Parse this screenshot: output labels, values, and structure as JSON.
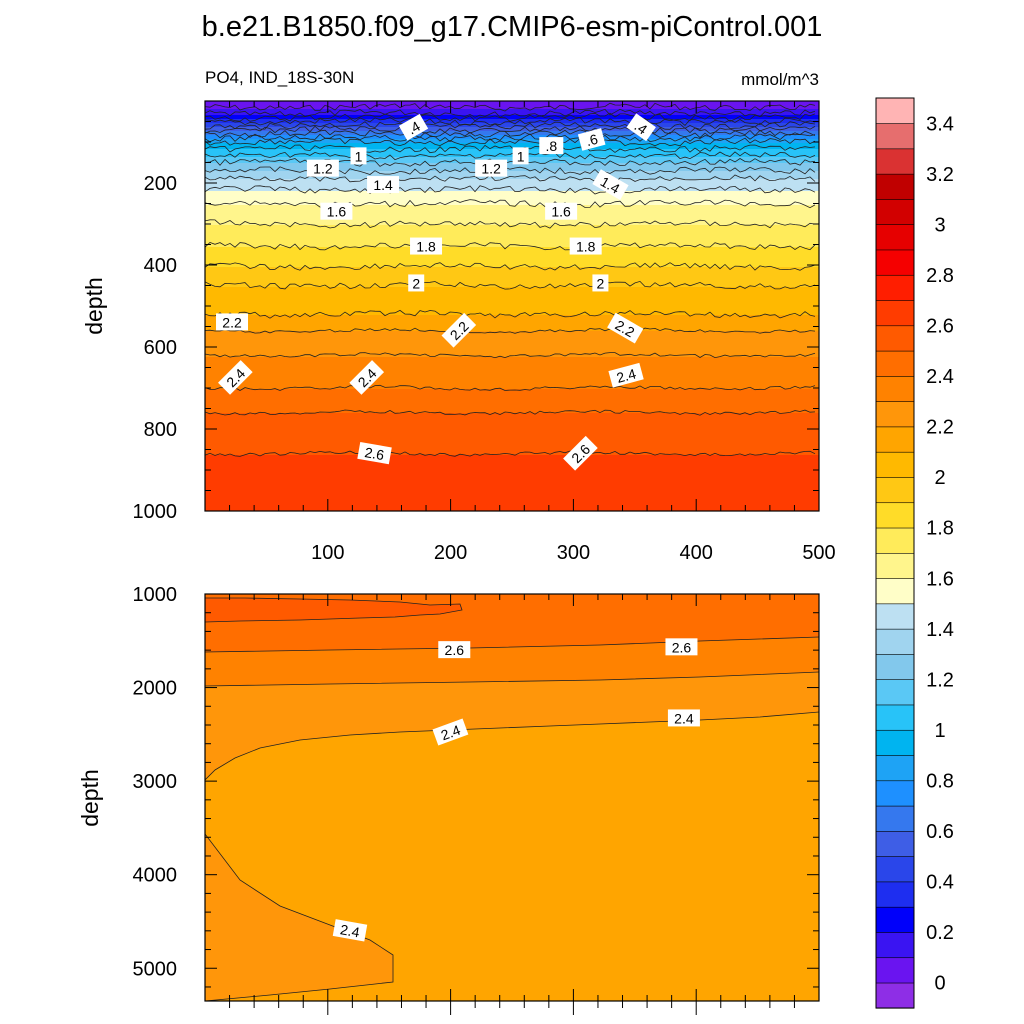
{
  "title": "b.e21.B1850.f09_g17.CMIP6-esm-piControl.001",
  "subtitle_left": "PO4, IND_18S-30N",
  "subtitle_right": "mmol/m^3",
  "colors": {
    "contour_line": "#222222",
    "label_bg": "#ffffff"
  },
  "chart_data": [
    {
      "type": "contour",
      "panel": "upper",
      "variable": "PO4",
      "region": "IND_18S-30N",
      "units": "mmol/m^3",
      "xlim": [
        0,
        500
      ],
      "ylim": [
        1000,
        0
      ],
      "ylabel": "depth",
      "xticks": [
        100,
        200,
        300,
        400,
        500
      ],
      "xtick_labels": [
        "100",
        "200",
        "300",
        "400",
        "500"
      ],
      "yticks": [
        200,
        400,
        600,
        800,
        1000
      ],
      "ytick_labels": [
        "200",
        "400",
        "600",
        "800",
        "1000"
      ],
      "depth_profile": [
        {
          "depth": 0,
          "value": 0.0
        },
        {
          "depth": 30,
          "value": 0.2
        },
        {
          "depth": 60,
          "value": 0.5
        },
        {
          "depth": 100,
          "value": 0.9
        },
        {
          "depth": 150,
          "value": 1.2
        },
        {
          "depth": 200,
          "value": 1.45
        },
        {
          "depth": 250,
          "value": 1.6
        },
        {
          "depth": 300,
          "value": 1.7
        },
        {
          "depth": 380,
          "value": 1.85
        },
        {
          "depth": 450,
          "value": 2.0
        },
        {
          "depth": 520,
          "value": 2.1
        },
        {
          "depth": 560,
          "value": 2.2
        },
        {
          "depth": 620,
          "value": 2.3
        },
        {
          "depth": 700,
          "value": 2.4
        },
        {
          "depth": 760,
          "value": 2.5
        },
        {
          "depth": 860,
          "value": 2.6
        },
        {
          "depth": 1000,
          "value": 2.65
        }
      ],
      "contour_labels": [
        {
          "text": ".4",
          "x": 170,
          "depth": 65,
          "rotation": -30
        },
        {
          "text": ".4",
          "x": 355,
          "depth": 65,
          "rotation": 35
        },
        {
          "text": ".6",
          "x": 315,
          "depth": 95,
          "rotation": -15
        },
        {
          "text": ".8",
          "x": 282,
          "depth": 110,
          "rotation": 0
        },
        {
          "text": "1",
          "x": 125,
          "depth": 135,
          "rotation": 0
        },
        {
          "text": "1",
          "x": 257,
          "depth": 135,
          "rotation": 0
        },
        {
          "text": "1.2",
          "x": 96,
          "depth": 165,
          "rotation": 0
        },
        {
          "text": "1.2",
          "x": 233,
          "depth": 165,
          "rotation": 0
        },
        {
          "text": "1.4",
          "x": 145,
          "depth": 205,
          "rotation": 0
        },
        {
          "text": "1.4",
          "x": 330,
          "depth": 205,
          "rotation": 30
        },
        {
          "text": "1.6",
          "x": 107,
          "depth": 270,
          "rotation": 0
        },
        {
          "text": "1.6",
          "x": 290,
          "depth": 270,
          "rotation": 0
        },
        {
          "text": "1.8",
          "x": 180,
          "depth": 355,
          "rotation": 0
        },
        {
          "text": "1.8",
          "x": 310,
          "depth": 355,
          "rotation": 0
        },
        {
          "text": "2",
          "x": 172,
          "depth": 445,
          "rotation": 0
        },
        {
          "text": "2",
          "x": 322,
          "depth": 445,
          "rotation": 0
        },
        {
          "text": "2.2",
          "x": 22,
          "depth": 540,
          "rotation": 0
        },
        {
          "text": "2.2",
          "x": 207,
          "depth": 560,
          "rotation": -45
        },
        {
          "text": "2.2",
          "x": 342,
          "depth": 555,
          "rotation": 30
        },
        {
          "text": "2.4",
          "x": 25,
          "depth": 675,
          "rotation": -45
        },
        {
          "text": "2.4",
          "x": 132,
          "depth": 675,
          "rotation": -45
        },
        {
          "text": "2.4",
          "x": 343,
          "depth": 670,
          "rotation": -15
        },
        {
          "text": "2.6",
          "x": 138,
          "depth": 860,
          "rotation": 10
        },
        {
          "text": "2.6",
          "x": 306,
          "depth": 860,
          "rotation": -45
        }
      ]
    },
    {
      "type": "contour",
      "panel": "lower",
      "variable": "PO4",
      "region": "IND_18S-30N",
      "units": "mmol/m^3",
      "xlim": [
        0,
        500
      ],
      "ylim": [
        5350,
        1000
      ],
      "ylabel": "depth",
      "yticks": [
        1000,
        2000,
        3000,
        4000,
        5000
      ],
      "ytick_labels": [
        "1000",
        "2000",
        "3000",
        "4000",
        "5000"
      ],
      "fill_regions": [
        {
          "name": "above-2.7",
          "value": 2.7
        },
        {
          "name": "2.6-2.7",
          "value": 2.65
        },
        {
          "name": "2.5-2.6",
          "value": 2.55
        },
        {
          "name": "2.4-2.5",
          "value": 2.45
        },
        {
          "name": "2.3-2.4",
          "value": 2.35
        },
        {
          "name": "bottom-2.4-2.5",
          "value": 2.45
        }
      ],
      "contour_labels": [
        {
          "text": "2.6",
          "x": 203,
          "depth": 1600,
          "rotation": 0
        },
        {
          "text": "2.6",
          "x": 388,
          "depth": 1570,
          "rotation": 0
        },
        {
          "text": "2.4",
          "x": 200,
          "depth": 2480,
          "rotation": -20
        },
        {
          "text": "2.4",
          "x": 390,
          "depth": 2330,
          "rotation": 0
        },
        {
          "text": "2.4",
          "x": 118,
          "depth": 4600,
          "rotation": 10
        }
      ]
    }
  ],
  "colorbar": {
    "colors": [
      "#8e2ee6",
      "#6a14f0",
      "#3a14f2",
      "#0000fa",
      "#1e2ef0",
      "#2a46ea",
      "#3e5ee6",
      "#3578ee",
      "#1e90ff",
      "#1ea3f5",
      "#00b4f0",
      "#28c3f8",
      "#5ac8f5",
      "#82c8ec",
      "#a0d4ef",
      "#bde0f2",
      "#fffec8",
      "#fff58c",
      "#ffeb5a",
      "#ffdc28",
      "#ffc814",
      "#ffb900",
      "#ffa500",
      "#ff960a",
      "#ff8200",
      "#ff6e00",
      "#ff5a00",
      "#ff3c00",
      "#ff1e00",
      "#f50000",
      "#e60000",
      "#d20000",
      "#c00000",
      "#da3232",
      "#e66e6e",
      "#ffb4b4"
    ],
    "labels": [
      "0",
      "0.2",
      "0.4",
      "0.6",
      "0.8",
      "1",
      "1.2",
      "1.4",
      "1.6",
      "1.8",
      "2",
      "2.2",
      "2.4",
      "2.6",
      "2.8",
      "3",
      "3.2",
      "3.4"
    ]
  }
}
